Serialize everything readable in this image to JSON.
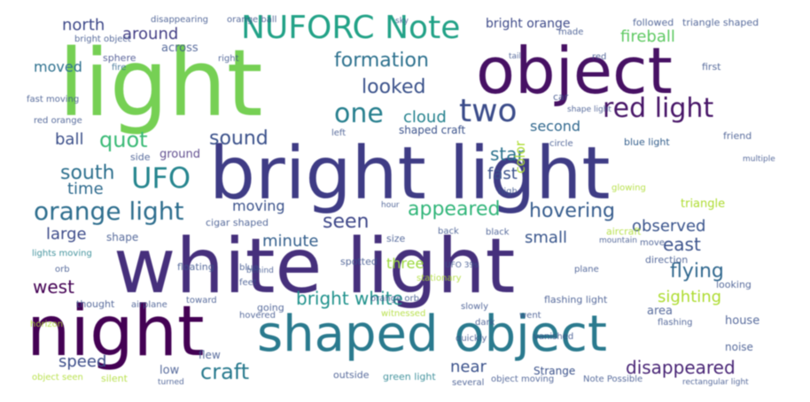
{
  "wordcloud": {
    "palette": {
      "purple_dark": "#440154",
      "indigo": "#472d7b",
      "blue": "#3b528b",
      "teal": "#2c728e",
      "cyan": "#21918c",
      "green": "#28ae80",
      "lime": "#5ec962",
      "yellow": "#addc30",
      "background": "#ffffff"
    },
    "words": [
      {
        "text": "light"
      },
      {
        "text": "object"
      },
      {
        "text": "bright light"
      },
      {
        "text": "white light"
      },
      {
        "text": "night"
      },
      {
        "text": "shaped object"
      },
      {
        "text": "NUFORC Note"
      },
      {
        "text": "two"
      },
      {
        "text": "one"
      },
      {
        "text": "red light"
      },
      {
        "text": "UFO"
      },
      {
        "text": "orange light"
      },
      {
        "text": "formation"
      },
      {
        "text": "looked"
      },
      {
        "text": "quot"
      },
      {
        "text": "sound"
      },
      {
        "text": "south"
      },
      {
        "text": "appeared"
      },
      {
        "text": "hovering"
      },
      {
        "text": "seen"
      },
      {
        "text": "flying"
      },
      {
        "text": "craft"
      },
      {
        "text": "bright white"
      },
      {
        "text": "disappeared"
      },
      {
        "text": "north"
      },
      {
        "text": "around"
      },
      {
        "text": "fireball"
      },
      {
        "text": "moved"
      },
      {
        "text": "cloud"
      },
      {
        "text": "ball"
      },
      {
        "text": "star"
      },
      {
        "text": "fast"
      },
      {
        "text": "second"
      },
      {
        "text": "time"
      },
      {
        "text": "moving"
      },
      {
        "text": "minute"
      },
      {
        "text": "large"
      },
      {
        "text": "observed"
      },
      {
        "text": "east"
      },
      {
        "text": "small"
      },
      {
        "text": "west"
      },
      {
        "text": "three"
      },
      {
        "text": "sighting"
      },
      {
        "text": "speed"
      },
      {
        "text": "near"
      },
      {
        "text": "Strange"
      },
      {
        "text": "color"
      },
      {
        "text": "bright orange"
      },
      {
        "text": "shaped craft"
      },
      {
        "text": "blue light"
      },
      {
        "text": "triangle"
      },
      {
        "text": "across"
      },
      {
        "text": "sphere"
      },
      {
        "text": "fire"
      },
      {
        "text": "lights moving"
      },
      {
        "text": "left"
      },
      {
        "text": "first"
      },
      {
        "text": "ground"
      },
      {
        "text": "side"
      },
      {
        "text": "shape"
      },
      {
        "text": "cigar shaped"
      },
      {
        "text": "floating"
      },
      {
        "text": "area"
      },
      {
        "text": "house"
      },
      {
        "text": "noise"
      },
      {
        "text": "low"
      },
      {
        "text": "flew"
      },
      {
        "text": "outside"
      },
      {
        "text": "silent"
      },
      {
        "text": "green light"
      },
      {
        "text": "object seen"
      },
      {
        "text": "object moving"
      },
      {
        "text": "Note Possible"
      },
      {
        "text": "flashing light"
      },
      {
        "text": "stationary"
      },
      {
        "text": "thought"
      },
      {
        "text": "going"
      },
      {
        "text": "toward"
      },
      {
        "text": "hovered"
      },
      {
        "text": "spotted"
      },
      {
        "text": "size"
      },
      {
        "text": "back"
      },
      {
        "text": "direction"
      },
      {
        "text": "looking"
      },
      {
        "text": "aircraft"
      },
      {
        "text": "followed"
      },
      {
        "text": "triangle shaped"
      },
      {
        "text": "disappearing"
      },
      {
        "text": "orange ball"
      },
      {
        "text": "made"
      },
      {
        "text": "right"
      },
      {
        "text": "friend"
      },
      {
        "text": "red orange"
      },
      {
        "text": "fast moving"
      },
      {
        "text": "car"
      },
      {
        "text": "circle"
      },
      {
        "text": "black"
      },
      {
        "text": "feet"
      },
      {
        "text": "blue"
      },
      {
        "text": "orb"
      },
      {
        "text": "airplane"
      },
      {
        "text": "witnessed"
      },
      {
        "text": "slowly"
      },
      {
        "text": "high"
      },
      {
        "text": "bright object"
      },
      {
        "text": "UFO 39s"
      },
      {
        "text": "quickly"
      },
      {
        "text": "several"
      },
      {
        "text": "move"
      },
      {
        "text": "went"
      },
      {
        "text": "dark"
      },
      {
        "text": "behind"
      },
      {
        "text": "mountain"
      },
      {
        "text": "sky"
      },
      {
        "text": "flashing"
      },
      {
        "text": "orange orb"
      },
      {
        "text": "glowing"
      },
      {
        "text": "rectangular light"
      },
      {
        "text": "horizon"
      },
      {
        "text": "turned"
      },
      {
        "text": "vanished"
      },
      {
        "text": "plane"
      },
      {
        "text": "tail"
      },
      {
        "text": "shape light"
      },
      {
        "text": "red"
      },
      {
        "text": "multiple"
      },
      {
        "text": "hour"
      }
    ]
  }
}
